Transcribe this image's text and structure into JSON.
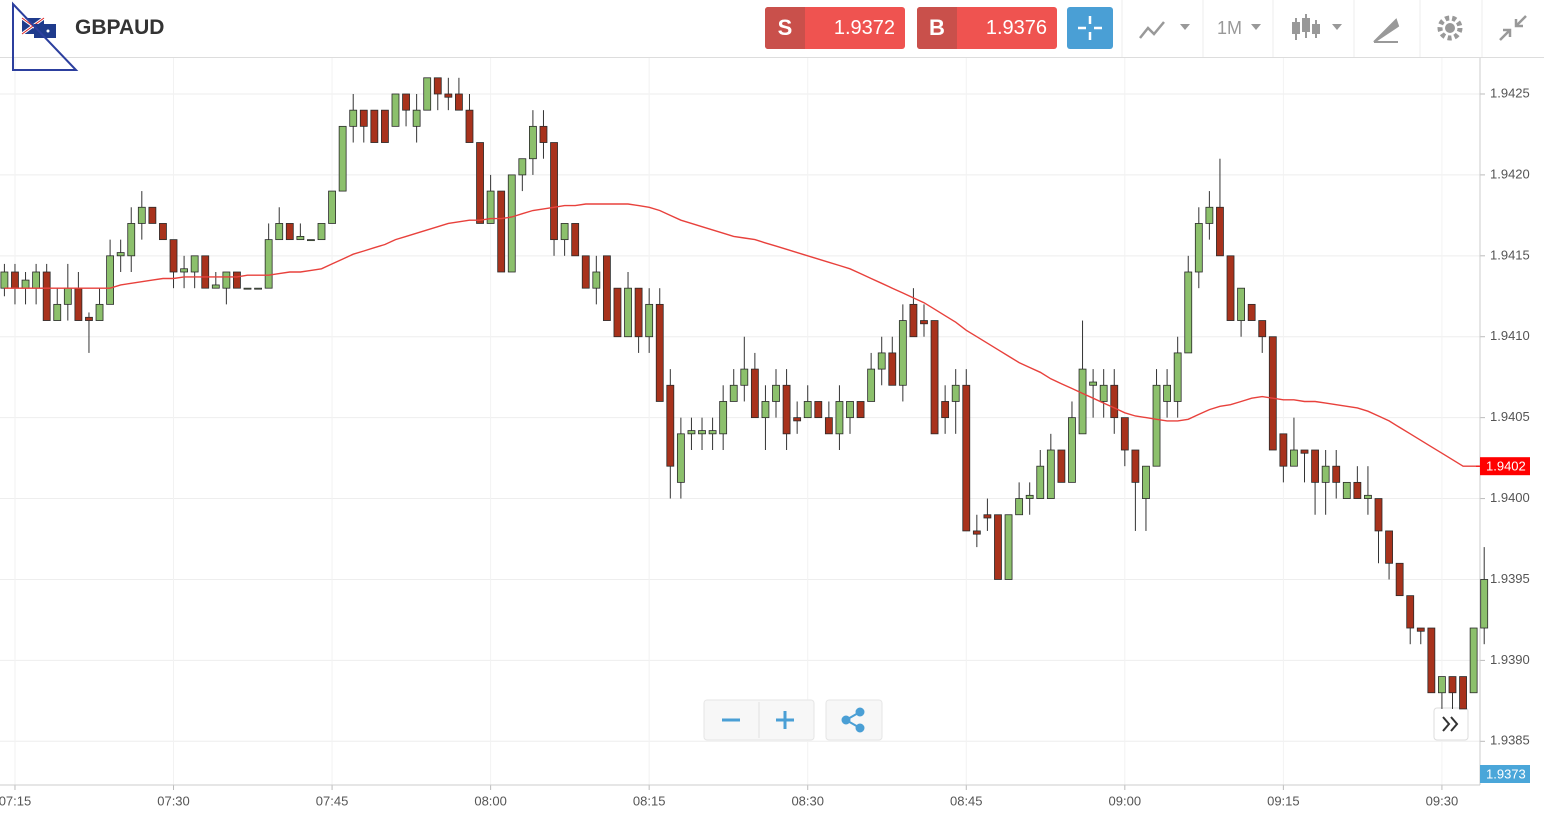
{
  "header": {
    "symbol": "GBPAUD",
    "sell": {
      "label": "S",
      "price": "1.9372"
    },
    "buy": {
      "label": "B",
      "price": "1.9376"
    },
    "timeframe": "1M"
  },
  "chart_data": {
    "type": "candlestick",
    "x": [
      "07:14",
      "07:15",
      "07:16",
      "07:17",
      "07:18",
      "07:19",
      "07:20",
      "07:21",
      "07:22",
      "07:23",
      "07:24",
      "07:25",
      "07:26",
      "07:27",
      "07:28",
      "07:29",
      "07:30",
      "07:31",
      "07:32",
      "07:33",
      "07:34",
      "07:35",
      "07:36",
      "07:37",
      "07:38",
      "07:39",
      "07:40",
      "07:41",
      "07:42",
      "07:43",
      "07:44",
      "07:45",
      "07:46",
      "07:47",
      "07:48",
      "07:49",
      "07:50",
      "07:51",
      "07:52",
      "07:53",
      "07:54",
      "07:55",
      "07:56",
      "07:57",
      "07:58",
      "07:59",
      "08:00",
      "08:01",
      "08:02",
      "08:03",
      "08:04",
      "08:05",
      "08:06",
      "08:07",
      "08:08",
      "08:09",
      "08:10",
      "08:11",
      "08:12",
      "08:13",
      "08:14",
      "08:15",
      "08:16",
      "08:17",
      "08:18",
      "08:19",
      "08:20",
      "08:21",
      "08:22",
      "08:23",
      "08:24",
      "08:25",
      "08:26",
      "08:27",
      "08:28",
      "08:29",
      "08:30",
      "08:31",
      "08:32",
      "08:33",
      "08:34",
      "08:35",
      "08:36",
      "08:37",
      "08:38",
      "08:39",
      "08:40",
      "08:41",
      "08:42",
      "08:43",
      "08:44",
      "08:45",
      "08:46",
      "08:47",
      "08:48",
      "08:49",
      "08:50",
      "08:51",
      "08:52",
      "08:53",
      "08:54",
      "08:55",
      "08:56",
      "08:57",
      "08:58",
      "08:59",
      "09:00",
      "09:01",
      "09:02",
      "09:03",
      "09:04",
      "09:05",
      "09:06",
      "09:07",
      "09:08",
      "09:09",
      "09:10",
      "09:11",
      "09:12",
      "09:13",
      "09:14",
      "09:15",
      "09:16",
      "09:17",
      "09:18",
      "09:19",
      "09:20",
      "09:21",
      "09:22",
      "09:23",
      "09:24",
      "09:25",
      "09:26",
      "09:27",
      "09:28",
      "09:29",
      "09:30",
      "09:31",
      "09:32",
      "09:33",
      "09:34"
    ],
    "open": [
      1.9413,
      1.9414,
      1.9413,
      1.9413,
      1.9414,
      1.9411,
      1.9412,
      1.9413,
      1.94112,
      1.9411,
      1.9412,
      1.9415,
      1.9415,
      1.9417,
      1.9418,
      1.9417,
      1.9416,
      1.9414,
      1.9414,
      1.9415,
      1.9413,
      1.9413,
      1.9414,
      1.9413,
      1.9413,
      1.9413,
      1.9416,
      1.9417,
      1.9416,
      1.9416,
      1.9416,
      1.9417,
      1.9419,
      1.9423,
      1.9424,
      1.9424,
      1.9424,
      1.9423,
      1.9425,
      1.9423,
      1.9424,
      1.9426,
      1.9425,
      1.9425,
      1.9424,
      1.9422,
      1.9417,
      1.9419,
      1.9414,
      1.942,
      1.9421,
      1.9423,
      1.9422,
      1.9416,
      1.9417,
      1.9415,
      1.9413,
      1.9415,
      1.9413,
      1.941,
      1.9413,
      1.941,
      1.9412,
      1.9407,
      1.9401,
      1.9404,
      1.9404,
      1.9404,
      1.9404,
      1.9406,
      1.9407,
      1.9408,
      1.9405,
      1.9406,
      1.9407,
      1.9405,
      1.9405,
      1.9406,
      1.9405,
      1.9404,
      1.9405,
      1.9406,
      1.9406,
      1.9408,
      1.9409,
      1.9407,
      1.9412,
      1.9411,
      1.9411,
      1.9406,
      1.9406,
      1.9407,
      1.9398,
      1.9399,
      1.9399,
      1.9395,
      1.9399,
      1.94,
      1.94,
      1.94,
      1.9403,
      1.9401,
      1.9404,
      1.9407,
      1.9406,
      1.9407,
      1.9405,
      1.9403,
      1.94,
      1.9402,
      1.9406,
      1.9406,
      1.9409,
      1.9414,
      1.9417,
      1.9418,
      1.9415,
      1.9411,
      1.9412,
      1.9411,
      1.941,
      1.9404,
      1.9402,
      1.9403,
      1.9403,
      1.9401,
      1.9402,
      1.94,
      1.9401,
      1.94,
      1.94,
      1.9398,
      1.9396,
      1.9394,
      1.9392,
      1.9392,
      1.9388,
      1.9389,
      1.9389,
      1.9388,
      1.9392
    ],
    "high": [
      1.94145,
      1.94145,
      1.9414,
      1.94145,
      1.94145,
      1.9413,
      1.94145,
      1.9414,
      1.94115,
      1.9413,
      1.9416,
      1.9416,
      1.9418,
      1.9419,
      1.9418,
      1.9417,
      1.9416,
      1.9415,
      1.9415,
      1.9415,
      1.9414,
      1.9414,
      1.9414,
      1.9413,
      1.9413,
      1.9417,
      1.9418,
      1.9417,
      1.9417,
      1.9416,
      1.9417,
      1.9419,
      1.9423,
      1.9425,
      1.9424,
      1.9424,
      1.9424,
      1.9425,
      1.9425,
      1.9425,
      1.9426,
      1.9426,
      1.9426,
      1.9426,
      1.9425,
      1.9422,
      1.942,
      1.9419,
      1.942,
      1.9421,
      1.9424,
      1.9424,
      1.9422,
      1.9417,
      1.9417,
      1.9415,
      1.9415,
      1.9415,
      1.9413,
      1.9414,
      1.9413,
      1.9413,
      1.9413,
      1.9408,
      1.9405,
      1.9405,
      1.9405,
      1.9405,
      1.9407,
      1.9408,
      1.941,
      1.9409,
      1.9407,
      1.9408,
      1.9408,
      1.9406,
      1.9407,
      1.9406,
      1.9406,
      1.9407,
      1.9406,
      1.9406,
      1.9409,
      1.941,
      1.941,
      1.9412,
      1.9413,
      1.9412,
      1.9411,
      1.9407,
      1.9408,
      1.9408,
      1.9399,
      1.94,
      1.9399,
      1.9399,
      1.9401,
      1.9401,
      1.9403,
      1.9404,
      1.9403,
      1.9406,
      1.9411,
      1.9408,
      1.9408,
      1.9408,
      1.9405,
      1.9403,
      1.9402,
      1.9408,
      1.9408,
      1.941,
      1.9415,
      1.9418,
      1.9419,
      1.9421,
      1.9415,
      1.9413,
      1.9412,
      1.9411,
      1.941,
      1.9404,
      1.9405,
      1.9403,
      1.9403,
      1.9403,
      1.9403,
      1.9401,
      1.9402,
      1.9402,
      1.94,
      1.9398,
      1.9396,
      1.9394,
      1.9392,
      1.9392,
      1.9389,
      1.9389,
      1.9389,
      1.9392,
      1.9397
    ],
    "low": [
      1.94125,
      1.9412,
      1.9412,
      1.9412,
      1.9411,
      1.9411,
      1.9411,
      1.9411,
      1.9409,
      1.9411,
      1.9412,
      1.9414,
      1.9414,
      1.9416,
      1.9417,
      1.9416,
      1.9413,
      1.9413,
      1.9413,
      1.9413,
      1.9413,
      1.9412,
      1.9413,
      1.9413,
      1.9413,
      1.9413,
      1.9416,
      1.9416,
      1.9416,
      1.9416,
      1.9416,
      1.9417,
      1.9419,
      1.9422,
      1.9422,
      1.9422,
      1.9422,
      1.9423,
      1.9423,
      1.9422,
      1.9424,
      1.9424,
      1.9424,
      1.9424,
      1.9422,
      1.9417,
      1.9417,
      1.9414,
      1.9414,
      1.9419,
      1.942,
      1.9421,
      1.9415,
      1.9415,
      1.9415,
      1.9413,
      1.9412,
      1.9411,
      1.941,
      1.941,
      1.9409,
      1.9409,
      1.9406,
      1.94,
      1.94,
      1.9403,
      1.9403,
      1.9403,
      1.9403,
      1.9406,
      1.9406,
      1.9405,
      1.9403,
      1.9405,
      1.9403,
      1.9404,
      1.9405,
      1.9405,
      1.9404,
      1.9403,
      1.9404,
      1.9405,
      1.9406,
      1.9407,
      1.9407,
      1.9406,
      1.941,
      1.941,
      1.9404,
      1.9404,
      1.9404,
      1.9398,
      1.9397,
      1.9398,
      1.9395,
      1.9395,
      1.9399,
      1.9399,
      1.94,
      1.94,
      1.9401,
      1.9401,
      1.9404,
      1.9405,
      1.9405,
      1.9404,
      1.9402,
      1.9398,
      1.9398,
      1.9402,
      1.9405,
      1.9405,
      1.9409,
      1.9413,
      1.9416,
      1.9415,
      1.9411,
      1.941,
      1.9411,
      1.9409,
      1.9403,
      1.9401,
      1.9402,
      1.9401,
      1.9399,
      1.9399,
      1.94,
      1.94,
      1.94,
      1.9399,
      1.9396,
      1.9395,
      1.9394,
      1.9391,
      1.9391,
      1.9388,
      1.9387,
      1.9387,
      1.9387,
      1.9388,
      1.9391
    ],
    "close": [
      1.9414,
      1.9413,
      1.94135,
      1.9414,
      1.9411,
      1.9412,
      1.9413,
      1.9411,
      1.9411,
      1.9412,
      1.9415,
      1.94152,
      1.9417,
      1.9418,
      1.9417,
      1.9416,
      1.9414,
      1.94142,
      1.9415,
      1.9413,
      1.94132,
      1.9414,
      1.9413,
      1.9413,
      1.9413,
      1.9416,
      1.9417,
      1.9416,
      1.94162,
      1.9416,
      1.9417,
      1.9419,
      1.9423,
      1.9424,
      1.9423,
      1.9422,
      1.9422,
      1.9425,
      1.9424,
      1.9424,
      1.9426,
      1.9425,
      1.94248,
      1.9424,
      1.9422,
      1.9417,
      1.9419,
      1.9414,
      1.942,
      1.9421,
      1.9423,
      1.9422,
      1.9416,
      1.9417,
      1.9415,
      1.9413,
      1.9414,
      1.9411,
      1.941,
      1.9413,
      1.941,
      1.9412,
      1.9406,
      1.9402,
      1.9404,
      1.94042,
      1.94042,
      1.94042,
      1.9406,
      1.9407,
      1.9408,
      1.9405,
      1.9406,
      1.9407,
      1.9404,
      1.94048,
      1.9406,
      1.9405,
      1.9404,
      1.9406,
      1.9406,
      1.9405,
      1.9408,
      1.9409,
      1.9407,
      1.9411,
      1.941,
      1.94108,
      1.9404,
      1.9405,
      1.9407,
      1.9398,
      1.93978,
      1.93988,
      1.9395,
      1.9399,
      1.94,
      1.94002,
      1.9402,
      1.9403,
      1.9401,
      1.9405,
      1.9408,
      1.94072,
      1.9407,
      1.9405,
      1.9403,
      1.9401,
      1.9402,
      1.9407,
      1.9407,
      1.9409,
      1.9414,
      1.9417,
      1.9418,
      1.9415,
      1.9411,
      1.9413,
      1.9411,
      1.941,
      1.9403,
      1.9402,
      1.9403,
      1.94028,
      1.9401,
      1.9402,
      1.9401,
      1.9401,
      1.94,
      1.94002,
      1.9398,
      1.9396,
      1.9394,
      1.9392,
      1.93918,
      1.9388,
      1.9389,
      1.9388,
      1.9387,
      1.9392,
      1.9395
    ],
    "up_color": "#8cc06c",
    "down_color": "#a8321c",
    "series": [
      {
        "color": "#e8413c",
        "values": [
          1.9413,
          1.9413,
          1.9413,
          1.9413,
          1.9413,
          1.9413,
          1.9413,
          1.9413,
          1.9413,
          1.9413,
          1.9413,
          1.94132,
          1.94133,
          1.94134,
          1.94135,
          1.94136,
          1.94136,
          1.94137,
          1.94137,
          1.94137,
          1.94137,
          1.94137,
          1.94137,
          1.94138,
          1.94138,
          1.94138,
          1.94139,
          1.9414,
          1.9414,
          1.94141,
          1.94142,
          1.94145,
          1.94148,
          1.94151,
          1.94153,
          1.94155,
          1.94157,
          1.9416,
          1.94162,
          1.94164,
          1.94166,
          1.94168,
          1.9417,
          1.94171,
          1.94172,
          1.94172,
          1.94173,
          1.94173,
          1.94174,
          1.94176,
          1.94178,
          1.94179,
          1.9418,
          1.94181,
          1.94181,
          1.94182,
          1.94182,
          1.94182,
          1.94182,
          1.94182,
          1.94181,
          1.9418,
          1.94178,
          1.94175,
          1.94172,
          1.9417,
          1.94168,
          1.94166,
          1.94164,
          1.94162,
          1.94161,
          1.9416,
          1.94158,
          1.94156,
          1.94154,
          1.94152,
          1.9415,
          1.94148,
          1.94146,
          1.94144,
          1.94142,
          1.94139,
          1.94136,
          1.94133,
          1.9413,
          1.94127,
          1.94124,
          1.94121,
          1.94117,
          1.94113,
          1.94109,
          1.94104,
          1.941,
          1.94096,
          1.94092,
          1.94088,
          1.94084,
          1.94081,
          1.94078,
          1.94074,
          1.94071,
          1.94068,
          1.94065,
          1.94062,
          1.94059,
          1.94056,
          1.94053,
          1.94051,
          1.9405,
          1.94049,
          1.94048,
          1.94048,
          1.94049,
          1.94052,
          1.94055,
          1.94057,
          1.94058,
          1.9406,
          1.94062,
          1.94063,
          1.94062,
          1.94061,
          1.94061,
          1.9406,
          1.9406,
          1.94059,
          1.94058,
          1.94057,
          1.94056,
          1.94054,
          1.94051,
          1.94048,
          1.94044,
          1.9404,
          1.94036,
          1.94032,
          1.94028,
          1.94024,
          1.9402,
          1.9402,
          1.9402
        ]
      }
    ],
    "ylim": [
      1.93823,
      1.94271
    ],
    "yticks": [
      1.9385,
      {
        "value": 1.939,
        "label": "1.9390"
      },
      1.9395,
      {
        "value": 1.94,
        "label": "1.9400"
      },
      1.9405,
      {
        "value": 1.941,
        "label": "1.9410"
      },
      1.9415,
      {
        "value": 1.942,
        "label": "1.9420"
      },
      1.9425
    ],
    "xticks": [
      "07:15",
      "07:30",
      "07:45",
      "08:00",
      "08:15",
      "08:30",
      "08:45",
      "09:00",
      "09:15",
      "09:30"
    ],
    "grid": true,
    "last_price": 1.9402,
    "last_price_color": "#ff0000",
    "marker_price": 1.9373,
    "marker_color": "#4aa6d9"
  }
}
